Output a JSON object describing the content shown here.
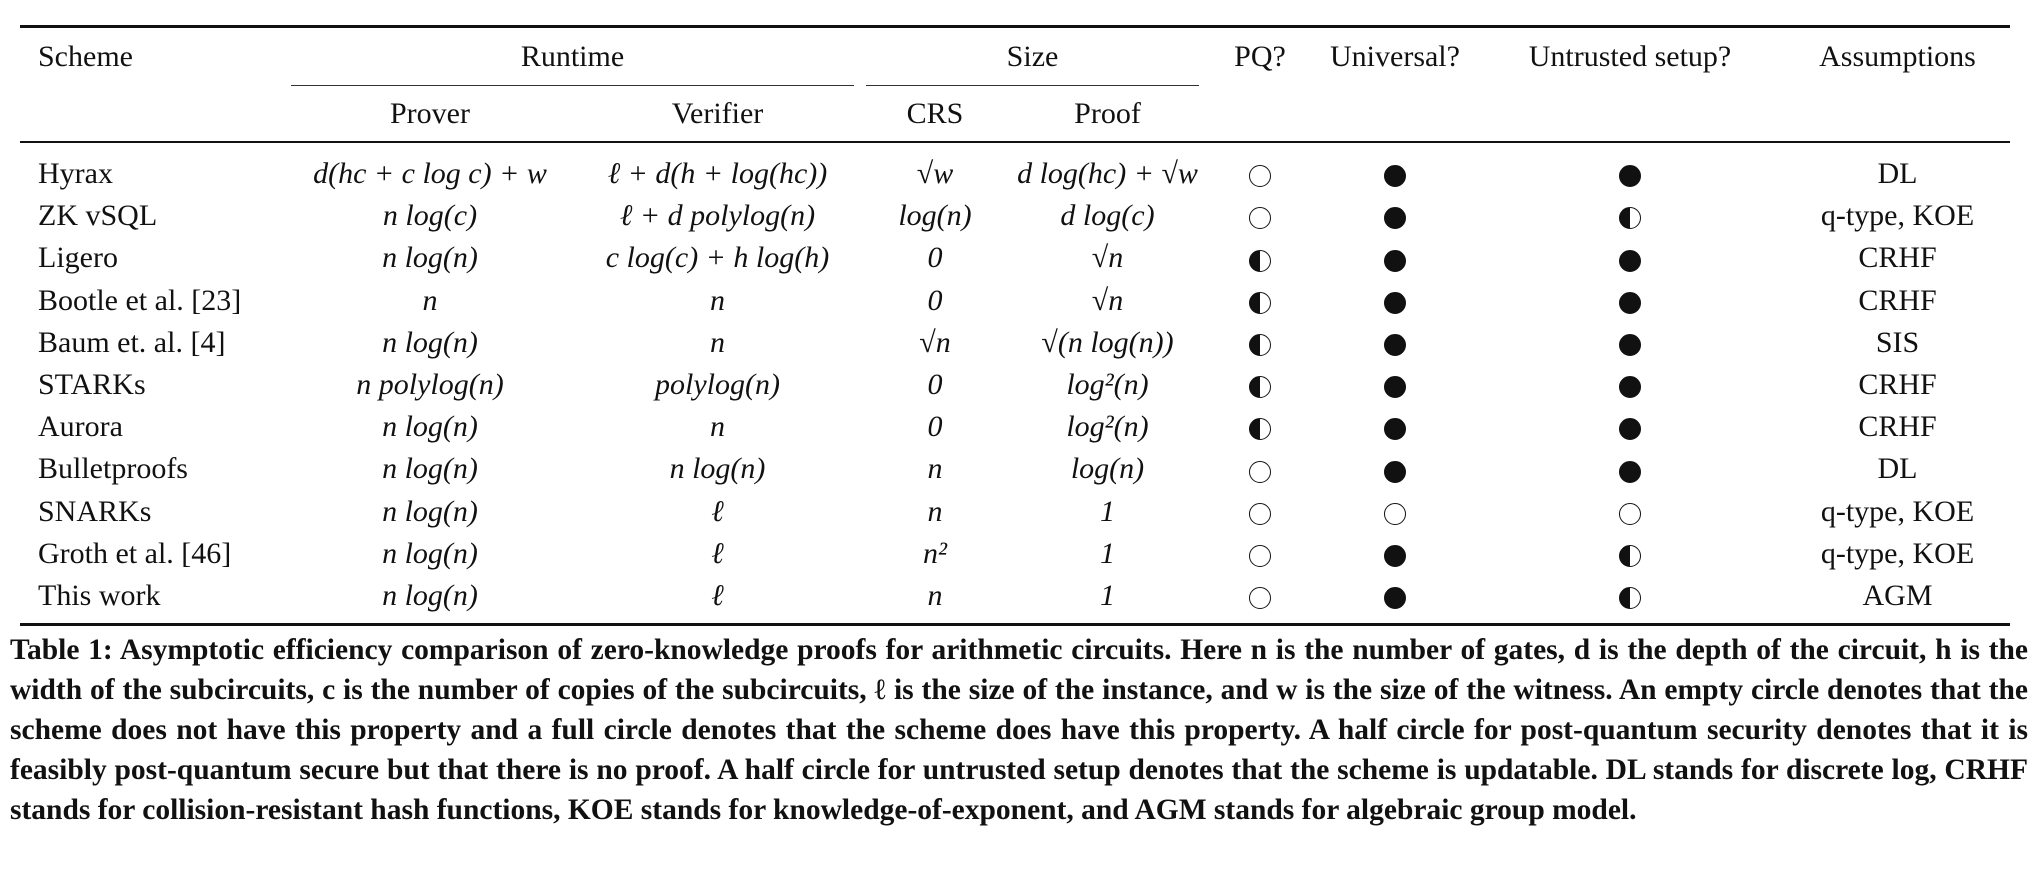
{
  "header": {
    "scheme": "Scheme",
    "runtime": "Runtime",
    "size": "Size",
    "pq": "PQ?",
    "universal": "Universal?",
    "untrusted": "Untrusted setup?",
    "assumptions": "Assumptions",
    "prover": "Prover",
    "verifier": "Verifier",
    "crs": "CRS",
    "proof": "Proof"
  },
  "rows": [
    {
      "scheme": "Hyrax",
      "prover": "d(hc + c log c) + w",
      "verifier": "ℓ + d(h + log(hc))",
      "crs": "√w",
      "proof": "d log(hc) + √w",
      "pq": "empty",
      "universal": "full",
      "untrusted": "full",
      "assumptions": "DL"
    },
    {
      "scheme": "ZK vSQL",
      "prover": "n log(c)",
      "verifier": "ℓ + d polylog(n)",
      "crs": "log(n)",
      "proof": "d log(c)",
      "pq": "empty",
      "universal": "full",
      "untrusted": "half",
      "assumptions": "q-type, KOE"
    },
    {
      "scheme": "Ligero",
      "prover": "n log(n)",
      "verifier": "c log(c) + h log(h)",
      "crs": "0",
      "proof": "√n",
      "pq": "half",
      "universal": "full",
      "untrusted": "full",
      "assumptions": "CRHF"
    },
    {
      "scheme": "Bootle et al. [23]",
      "prover": "n",
      "verifier": "n",
      "crs": "0",
      "proof": "√n",
      "pq": "half",
      "universal": "full",
      "untrusted": "full",
      "assumptions": "CRHF"
    },
    {
      "scheme": "Baum et. al. [4]",
      "prover": "n log(n)",
      "verifier": "n",
      "crs": "√n",
      "proof": "√(n log(n))",
      "pq": "half",
      "universal": "full",
      "untrusted": "full",
      "assumptions": "SIS"
    },
    {
      "scheme": "STARKs",
      "prover": "n polylog(n)",
      "verifier": "polylog(n)",
      "crs": "0",
      "proof": "log²(n)",
      "pq": "half",
      "universal": "full",
      "untrusted": "full",
      "assumptions": "CRHF"
    },
    {
      "scheme": "Aurora",
      "prover": "n log(n)",
      "verifier": "n",
      "crs": "0",
      "proof": "log²(n)",
      "pq": "half",
      "universal": "full",
      "untrusted": "full",
      "assumptions": "CRHF"
    },
    {
      "scheme": "Bulletproofs",
      "prover": "n log(n)",
      "verifier": "n log(n)",
      "crs": "n",
      "proof": "log(n)",
      "pq": "empty",
      "universal": "full",
      "untrusted": "full",
      "assumptions": "DL"
    },
    {
      "scheme": "SNARKs",
      "prover": "n log(n)",
      "verifier": "ℓ",
      "crs": "n",
      "proof": "1",
      "pq": "empty",
      "universal": "empty",
      "untrusted": "empty",
      "assumptions": "q-type, KOE"
    },
    {
      "scheme": "Groth et al. [46]",
      "prover": "n log(n)",
      "verifier": "ℓ",
      "crs": "n²",
      "proof": "1",
      "pq": "empty",
      "universal": "full",
      "untrusted": "half",
      "assumptions": "q-type, KOE"
    },
    {
      "scheme": "This work",
      "prover": "n log(n)",
      "verifier": "ℓ",
      "crs": "n",
      "proof": "1",
      "pq": "empty",
      "universal": "full",
      "untrusted": "half",
      "assumptions": "AGM"
    }
  ],
  "caption": "Table 1: Asymptotic efficiency comparison of zero-knowledge proofs for arithmetic circuits. Here n is the number of gates, d is the depth of the circuit, h is the width of the subcircuits, c is the number of copies of the subcircuits, ℓ is the size of the instance, and w is the size of the witness. An empty circle denotes that the scheme does not have this property and a full circle denotes that the scheme does have this property. A half circle for post-quantum security denotes that it is feasibly post-quantum secure but that there is no proof. A half circle for untrusted setup denotes that the scheme is updatable. DL stands for discrete log, CRHF stands for collision-resistant hash functions, KOE stands for knowledge-of-exponent, and AGM stands for algebraic group model."
}
